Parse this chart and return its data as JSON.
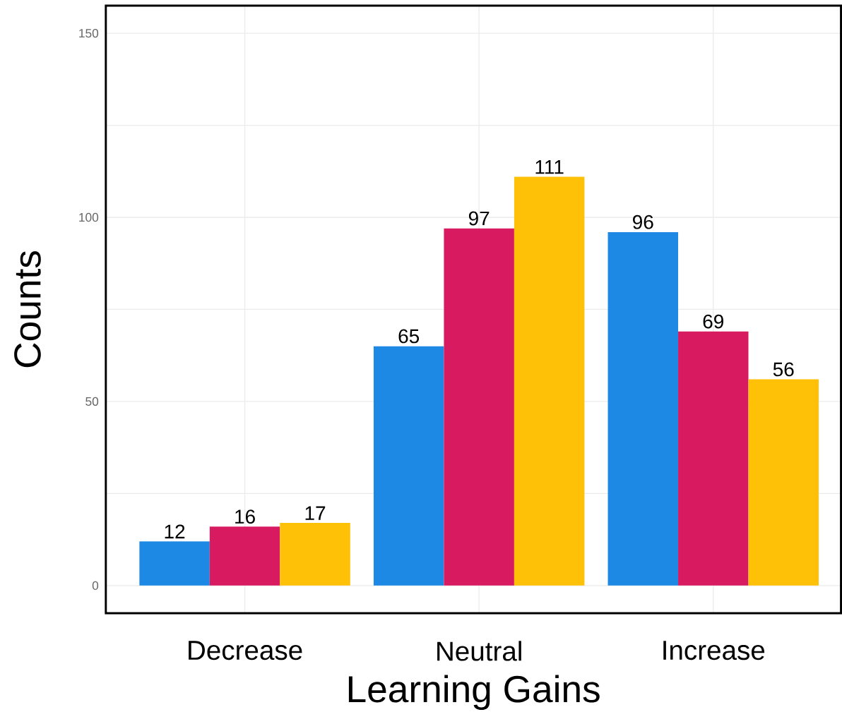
{
  "chart_data": {
    "type": "bar",
    "xlabel": "Learning Gains",
    "ylabel": "Counts",
    "categories": [
      "Decrease",
      "Neutral",
      "Increase"
    ],
    "series": [
      {
        "color": "#1e88e5",
        "values": [
          12,
          65,
          96
        ]
      },
      {
        "color": "#d81b60",
        "values": [
          16,
          97,
          69
        ]
      },
      {
        "color": "#ffc107",
        "values": [
          17,
          111,
          56
        ]
      }
    ],
    "ylim": [
      -7.5,
      157.5
    ],
    "yticks": [
      0,
      {
        "value": 25,
        "label": null
      },
      50,
      {
        "value": 75,
        "label": null
      },
      100,
      {
        "value": 125,
        "label": null
      },
      150
    ],
    "grid": true,
    "data_labels": true
  }
}
